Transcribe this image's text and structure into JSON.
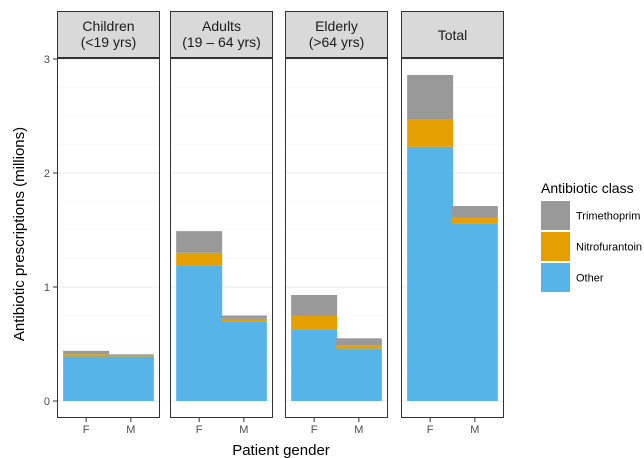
{
  "chart_data": {
    "type": "bar",
    "stacked": true,
    "xlabel": "Patient gender",
    "ylabel": "Antibiotic prescriptions (millions)",
    "ylim": [
      0,
      3
    ],
    "yticks": [
      "0",
      "1",
      "2",
      "3"
    ],
    "grid": true,
    "legend": {
      "title": "Antibiotic class",
      "position": "right",
      "entries": [
        {
          "name": "Trimethoprim",
          "color": "#999999"
        },
        {
          "name": "Nitrofurantoin",
          "color": "#E69F00"
        },
        {
          "name": "Other",
          "color": "#56B4E9"
        }
      ]
    },
    "stack_order": [
      "Other",
      "Nitrofurantoin",
      "Trimethoprim"
    ],
    "panels": [
      {
        "title_lines": [
          "Children",
          "(<19 yrs)"
        ],
        "categories": [
          "F",
          "M"
        ],
        "series": [
          {
            "name": "Other",
            "values": [
              0.39,
              0.39
            ]
          },
          {
            "name": "Nitrofurantoin",
            "values": [
              0.02,
              0.01
            ]
          },
          {
            "name": "Trimethoprim",
            "values": [
              0.03,
              0.01
            ]
          }
        ]
      },
      {
        "title_lines": [
          "Adults",
          "(19 – 64 yrs)"
        ],
        "categories": [
          "F",
          "M"
        ],
        "series": [
          {
            "name": "Other",
            "values": [
              1.19,
              0.7
            ]
          },
          {
            "name": "Nitrofurantoin",
            "values": [
              0.11,
              0.02
            ]
          },
          {
            "name": "Trimethoprim",
            "values": [
              0.19,
              0.03
            ]
          }
        ]
      },
      {
        "title_lines": [
          "Elderly",
          "(>64 yrs)"
        ],
        "categories": [
          "F",
          "M"
        ],
        "series": [
          {
            "name": "Other",
            "values": [
              0.63,
              0.46
            ]
          },
          {
            "name": "Nitrofurantoin",
            "values": [
              0.12,
              0.03
            ]
          },
          {
            "name": "Trimethoprim",
            "values": [
              0.18,
              0.06
            ]
          }
        ]
      },
      {
        "title_lines": [
          "Total"
        ],
        "categories": [
          "F",
          "M"
        ],
        "series": [
          {
            "name": "Other",
            "values": [
              2.23,
              1.56
            ]
          },
          {
            "name": "Nitrofurantoin",
            "values": [
              0.24,
              0.05
            ]
          },
          {
            "name": "Trimethoprim",
            "values": [
              0.39,
              0.1
            ]
          }
        ]
      }
    ]
  }
}
